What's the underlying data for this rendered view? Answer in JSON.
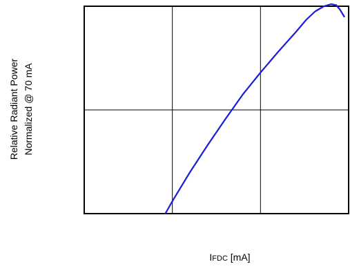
{
  "chart_data": {
    "type": "line",
    "title": "",
    "ylabel_line1": "Relative Radiant Power",
    "ylabel_line2": "Normalized @ 70 mA",
    "xlabel_main": "I",
    "xlabel_sub": "FDC",
    "xlabel_unit": " [mA]",
    "xlim": [
      0,
      3
    ],
    "ylim": [
      0,
      2
    ],
    "grid": true,
    "tick_labels_shown": false,
    "colors": {
      "line": "#1a1adf",
      "frame": "#000000",
      "grid": "#000000"
    },
    "series": [
      {
        "x": [
          0.92,
          1.0,
          1.2,
          1.4,
          1.6,
          1.8,
          2.0,
          2.2,
          2.4,
          2.52,
          2.62,
          2.72,
          2.8,
          2.86,
          2.9,
          2.95
        ],
        "y": [
          0.0,
          0.12,
          0.4,
          0.66,
          0.91,
          1.15,
          1.36,
          1.56,
          1.75,
          1.87,
          1.95,
          2.0,
          2.02,
          2.01,
          1.97,
          1.9
        ]
      }
    ]
  }
}
